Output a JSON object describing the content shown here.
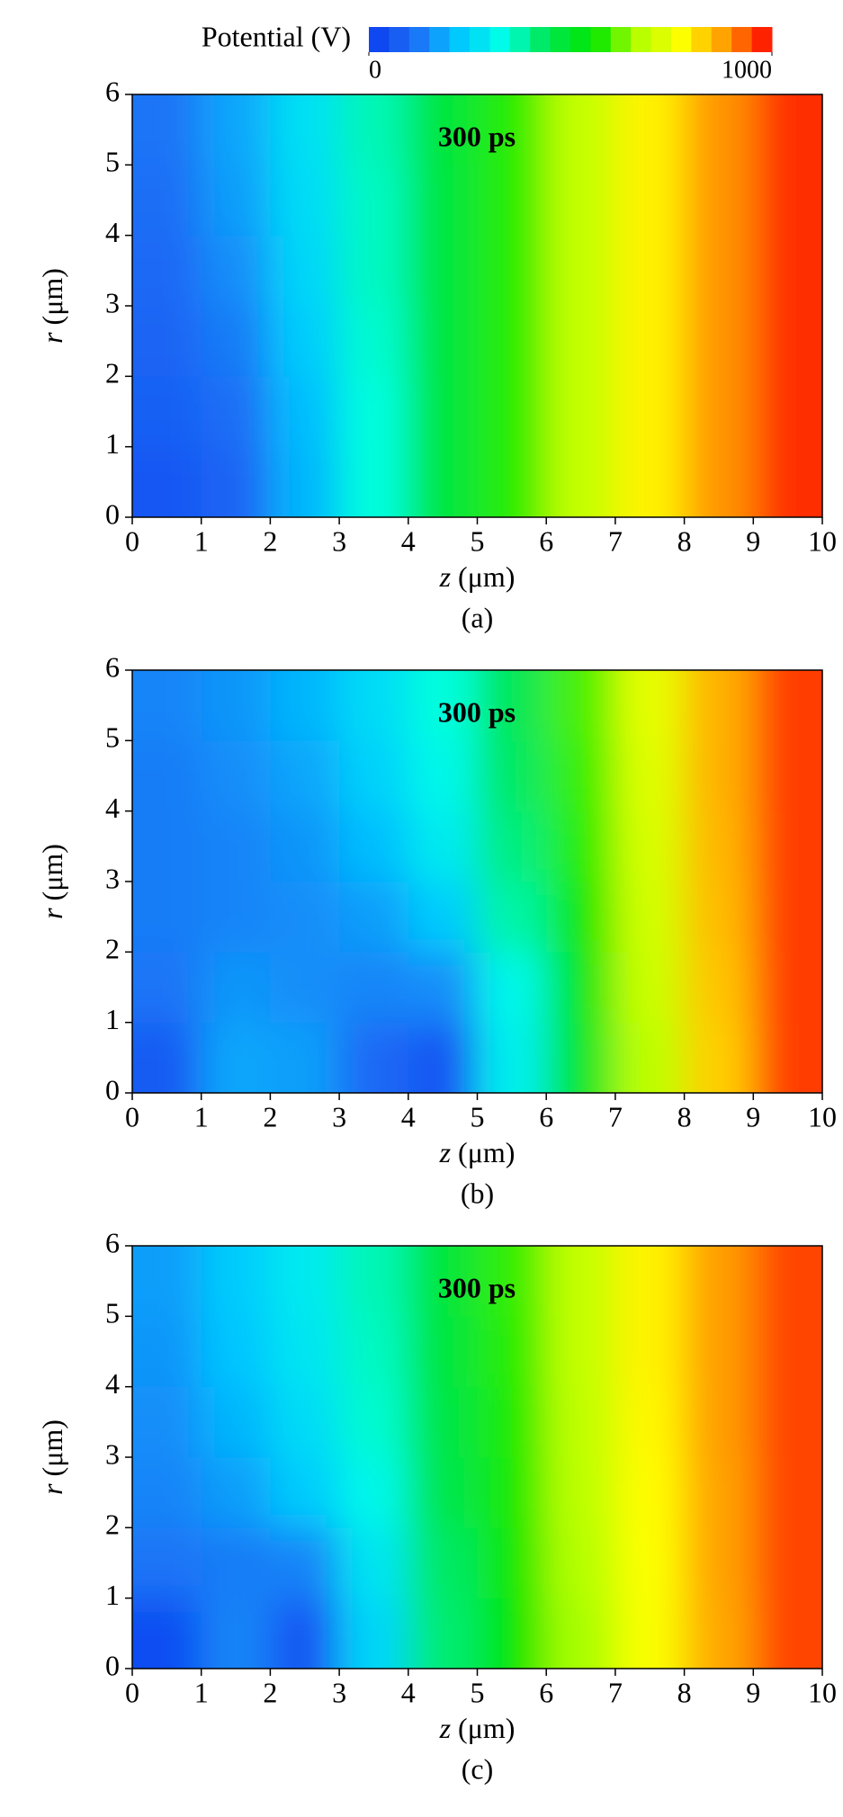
{
  "colorbar": {
    "label": "Potential (V)",
    "clim": [
      0,
      1000
    ],
    "cticks": [
      0,
      1000
    ],
    "colors": [
      "#0a3cf0",
      "#1e6ef5",
      "#00c8ff",
      "#00ffe6",
      "#00e650",
      "#00e600",
      "#b4ff00",
      "#ffff00",
      "#ff9600",
      "#ff0000"
    ]
  },
  "chart_data": [
    {
      "type": "heatmap",
      "annotation": "300 ps",
      "caption": "(a)",
      "xlabel": "z",
      "xlabel_unit": "(μm)",
      "ylabel": "r",
      "ylabel_unit": "(μm)",
      "xlim": [
        0,
        10
      ],
      "ylim": [
        0,
        6
      ],
      "xticks": [
        0,
        1,
        2,
        3,
        4,
        5,
        6,
        7,
        8,
        9,
        10
      ],
      "yticks": [
        0,
        1,
        2,
        3,
        4,
        5,
        6
      ],
      "x": [
        0.5,
        1.5,
        2.5,
        3.5,
        4.5,
        5.5,
        6.5,
        7.5,
        8.5,
        9.5
      ],
      "y": [
        0.5,
        1.5,
        2.5,
        3.5,
        4.5,
        5.5
      ],
      "values": [
        [
          60,
          90,
          200,
          340,
          470,
          580,
          690,
          790,
          890,
          965
        ],
        [
          80,
          110,
          210,
          340,
          470,
          580,
          690,
          790,
          890,
          965
        ],
        [
          90,
          130,
          230,
          350,
          470,
          580,
          690,
          790,
          890,
          965
        ],
        [
          100,
          150,
          250,
          360,
          470,
          580,
          690,
          790,
          890,
          965
        ],
        [
          110,
          170,
          260,
          360,
          470,
          580,
          690,
          790,
          890,
          965
        ],
        [
          120,
          180,
          270,
          370,
          475,
          580,
          690,
          790,
          890,
          965
        ]
      ]
    },
    {
      "type": "heatmap",
      "annotation": "300 ps",
      "caption": "(b)",
      "xlabel": "z",
      "xlabel_unit": "(μm)",
      "ylabel": "r",
      "ylabel_unit": "(μm)",
      "xlim": [
        0,
        10
      ],
      "ylim": [
        0,
        6
      ],
      "xticks": [
        0,
        1,
        2,
        3,
        4,
        5,
        6,
        7,
        8,
        9,
        10
      ],
      "yticks": [
        0,
        1,
        2,
        3,
        4,
        5,
        6
      ],
      "x": [
        0.5,
        1.5,
        2.5,
        3.5,
        4.5,
        5.5,
        6.5,
        7.5,
        8.5,
        9.5
      ],
      "y": [
        0.5,
        1.5,
        2.5,
        3.5,
        4.5,
        5.5
      ],
      "values": [
        [
          70,
          180,
          170,
          100,
          60,
          300,
          500,
          680,
          830,
          955
        ],
        [
          120,
          160,
          150,
          140,
          150,
          320,
          530,
          700,
          840,
          955
        ],
        [
          130,
          140,
          150,
          170,
          230,
          380,
          560,
          710,
          850,
          955
        ],
        [
          130,
          140,
          160,
          210,
          290,
          410,
          580,
          720,
          855,
          955
        ],
        [
          130,
          150,
          180,
          240,
          320,
          430,
          590,
          730,
          860,
          955
        ],
        [
          140,
          160,
          200,
          260,
          340,
          440,
          600,
          740,
          860,
          955
        ]
      ]
    },
    {
      "type": "heatmap",
      "annotation": "300 ps",
      "caption": "(c)",
      "xlabel": "z",
      "xlabel_unit": "(μm)",
      "ylabel": "r",
      "ylabel_unit": "(μm)",
      "xlim": [
        0,
        10
      ],
      "ylim": [
        0,
        6
      ],
      "xticks": [
        0,
        1,
        2,
        3,
        4,
        5,
        6,
        7,
        8,
        9,
        10
      ],
      "yticks": [
        0,
        1,
        2,
        3,
        4,
        5,
        6
      ],
      "x": [
        0.5,
        1.5,
        2.5,
        3.5,
        4.5,
        5.5,
        6.5,
        7.5,
        8.5,
        9.5
      ],
      "y": [
        0.5,
        1.5,
        2.5,
        3.5,
        4.5,
        5.5
      ],
      "values": [
        [
          40,
          140,
          60,
          250,
          420,
          550,
          660,
          770,
          870,
          950
        ],
        [
          120,
          130,
          140,
          280,
          430,
          560,
          670,
          775,
          875,
          950
        ],
        [
          140,
          170,
          230,
          320,
          450,
          570,
          680,
          780,
          875,
          950
        ],
        [
          150,
          200,
          260,
          350,
          460,
          575,
          685,
          785,
          880,
          950
        ],
        [
          160,
          220,
          280,
          360,
          470,
          580,
          690,
          790,
          880,
          950
        ],
        [
          170,
          230,
          290,
          370,
          475,
          585,
          690,
          790,
          880,
          950
        ]
      ]
    }
  ]
}
